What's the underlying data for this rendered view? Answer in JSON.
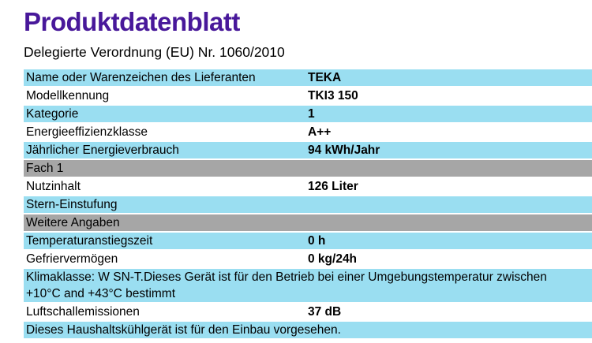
{
  "page": {
    "title": "Produktdatenblatt",
    "subtitle": "Delegierte Verordnung (EU) Nr. 1060/2010"
  },
  "colors": {
    "title_text": "#48189a",
    "row_blue": "#9adef1",
    "row_gray": "#a6a6a6",
    "row_white": "#ffffff",
    "body_text": "#000000"
  },
  "table": {
    "rows": [
      {
        "type": "pair",
        "bg": "blue",
        "label": "Name oder Warenzeichen des Lieferanten",
        "value": "TEKA"
      },
      {
        "type": "pair",
        "bg": "white",
        "label": "Modellkennung",
        "value": "TKI3 150"
      },
      {
        "type": "pair",
        "bg": "blue",
        "label": "Kategorie",
        "value": "1"
      },
      {
        "type": "pair",
        "bg": "white",
        "label": "Energieeffizienzklasse",
        "value": "A++"
      },
      {
        "type": "pair",
        "bg": "blue",
        "label": "Jährlicher Energieverbrauch",
        "value": "94 kWh/Jahr"
      },
      {
        "type": "section",
        "bg": "gray",
        "label": "Fach 1"
      },
      {
        "type": "pair",
        "bg": "white",
        "label": "Nutzinhalt",
        "value": "126 Liter"
      },
      {
        "type": "pair",
        "bg": "blue",
        "label": "Stern-Einstufung",
        "value": ""
      },
      {
        "type": "section",
        "bg": "gray",
        "label": "Weitere Angaben"
      },
      {
        "type": "pair",
        "bg": "blue",
        "label": "Temperaturanstiegszeit",
        "value": "0 h"
      },
      {
        "type": "pair",
        "bg": "white",
        "label": "Gefriervermögen",
        "value": "0 kg/24h"
      },
      {
        "type": "note",
        "bg": "blue",
        "lines": [
          "Klimaklasse: W SN-T.Dieses Gerät ist für den Betrieb bei einer Umgebungstemperatur zwischen",
          "+10°C and +43°C bestimmt"
        ]
      },
      {
        "type": "pair",
        "bg": "white",
        "label": "Luftschallemissionen",
        "value": "37 dB"
      },
      {
        "type": "note",
        "bg": "blue",
        "lines": [
          "Dieses Haushaltskühlgerät ist für den Einbau vorgesehen."
        ]
      }
    ]
  }
}
